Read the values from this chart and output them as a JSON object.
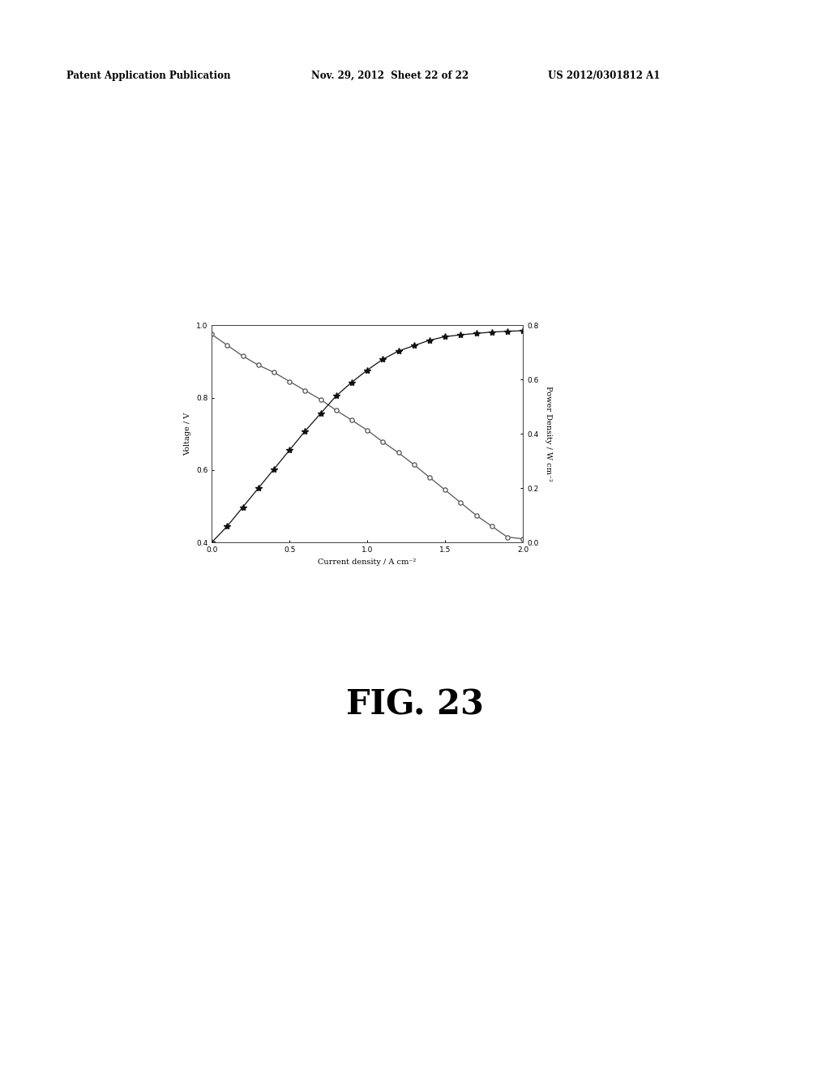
{
  "header_left": "Patent Application Publication",
  "header_mid": "Nov. 29, 2012  Sheet 22 of 22",
  "header_right": "US 2012/0301812 A1",
  "fig_caption": "FIG. 23",
  "xlabel": "Current density / A cm⁻²",
  "ylabel_left": "Voltage / V",
  "ylabel_right": "Power Density / W cm⁻²",
  "xlim": [
    0.0,
    2.0
  ],
  "ylim_left": [
    0.4,
    1.0
  ],
  "ylim_right": [
    0.0,
    0.8
  ],
  "xticks": [
    0.0,
    0.5,
    1.0,
    1.5,
    2.0
  ],
  "yticks_left": [
    0.4,
    0.6,
    0.8,
    1.0
  ],
  "yticks_right": [
    0.0,
    0.2,
    0.4,
    0.6,
    0.8
  ],
  "voltage_x": [
    0.0,
    0.1,
    0.2,
    0.3,
    0.4,
    0.5,
    0.6,
    0.7,
    0.8,
    0.9,
    1.0,
    1.1,
    1.2,
    1.3,
    1.4,
    1.5,
    1.6,
    1.7,
    1.8,
    1.9,
    2.0
  ],
  "voltage_y": [
    0.975,
    0.945,
    0.915,
    0.89,
    0.87,
    0.845,
    0.82,
    0.795,
    0.765,
    0.738,
    0.71,
    0.678,
    0.648,
    0.615,
    0.58,
    0.545,
    0.51,
    0.475,
    0.445,
    0.415,
    0.41
  ],
  "power_x": [
    0.0,
    0.1,
    0.2,
    0.3,
    0.4,
    0.5,
    0.6,
    0.7,
    0.8,
    0.9,
    1.0,
    1.1,
    1.2,
    1.3,
    1.4,
    1.5,
    1.6,
    1.7,
    1.8,
    1.9,
    2.0
  ],
  "power_y": [
    0.0,
    0.06,
    0.13,
    0.2,
    0.27,
    0.34,
    0.41,
    0.475,
    0.54,
    0.59,
    0.635,
    0.675,
    0.705,
    0.725,
    0.745,
    0.758,
    0.765,
    0.77,
    0.775,
    0.778,
    0.78
  ],
  "voltage_color": "#555555",
  "power_color": "#111111",
  "background_color": "#ffffff"
}
